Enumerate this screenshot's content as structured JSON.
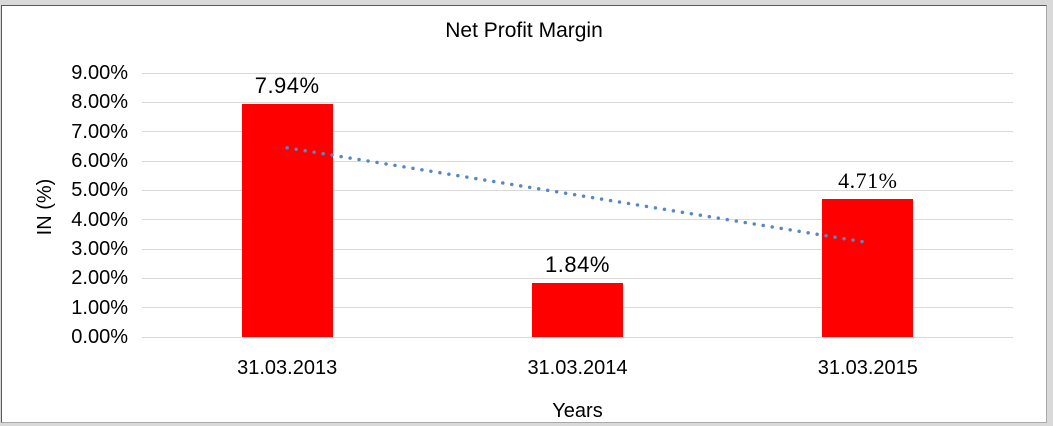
{
  "frame": {
    "outer_background": "#d9d9d9",
    "chart_background": "#ffffff",
    "border_dark": "#595959",
    "border_light": "#ababab"
  },
  "chart_data": {
    "type": "bar",
    "title": "Net Profit Margin",
    "categories": [
      "31.03.2013",
      "31.03.2014",
      "31.03.2015"
    ],
    "values": [
      7.94,
      1.84,
      4.71
    ],
    "value_labels": [
      "7.94%",
      "1.84%",
      "4.71%"
    ],
    "serif_value_label_index": 2,
    "xlabel": "Years",
    "ylabel": "IN (%)",
    "ylim": [
      0,
      9
    ],
    "ytick_labels": [
      "9.00%",
      "8.00%",
      "7.00%",
      "6.00%",
      "5.00%",
      "4.00%",
      "3.00%",
      "2.00%",
      "1.00%",
      "0.00%"
    ],
    "grid": true,
    "legend_position": "none",
    "bar_color": "#ff0000",
    "gridline_color": "#d9d9d9",
    "text_color": "#000000",
    "trendline": {
      "style": "dotted",
      "color": "#5588c7",
      "start_value": 6.45,
      "end_value": 3.22
    }
  }
}
